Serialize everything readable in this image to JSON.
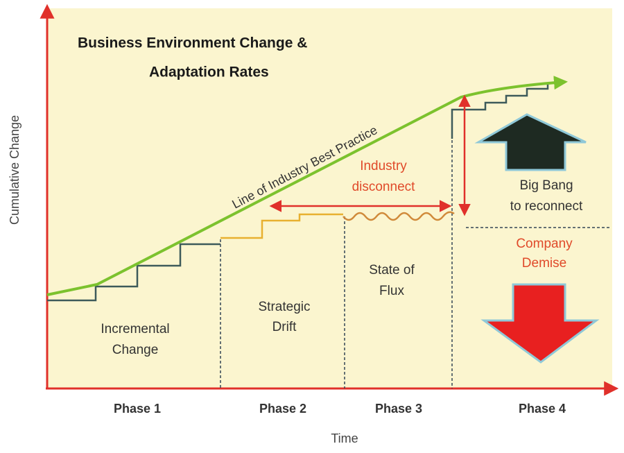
{
  "title": [
    "Business Environment Change &",
    "Adaptation Rates"
  ],
  "y_axis_label": "Cumulative Change",
  "x_axis_label": "Time",
  "curve_label": "Line of Industry Best Practice",
  "annotations": {
    "industry_disconnect": [
      "Industry",
      "disconnect"
    ],
    "big_bang": [
      "Big Bang",
      "to reconnect"
    ],
    "company_demise": [
      "Company",
      "Demise"
    ]
  },
  "regions": [
    [
      "Incremental",
      "Change"
    ],
    [
      "Strategic",
      "Drift"
    ],
    [
      "State of",
      "Flux"
    ]
  ],
  "phases": [
    "Phase 1",
    "Phase 2",
    "Phase 3",
    "Phase 4"
  ]
}
